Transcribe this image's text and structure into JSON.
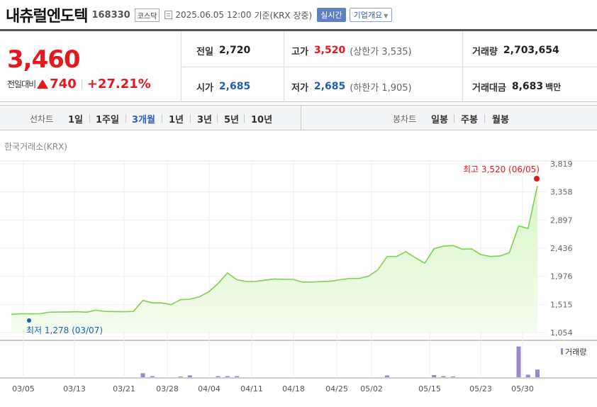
{
  "header": {
    "name": "내츄럴엔도텍",
    "code": "168330",
    "market": "코스닥",
    "datetime": "2025.06.05 12:00",
    "basis": "기준(KRX 장중)",
    "realtime_label": "실시간",
    "company_label": "기업개요"
  },
  "quote": {
    "price": "3,460",
    "change_label": "전일대비",
    "change_value": "740",
    "change_pct": "+27.21%",
    "prev_label": "전일",
    "prev_value": "2,720",
    "high_label": "고가",
    "high_value": "3,520",
    "upper_limit": "(상한가 3,535)",
    "volume_label": "거래량",
    "volume_value": "2,703,654",
    "open_label": "시가",
    "open_value": "2,685",
    "low_label": "저가",
    "low_value": "2,685",
    "lower_limit": "(하한가 1,905)",
    "amount_label": "거래대금",
    "amount_value": "8,683",
    "amount_unit": "백만"
  },
  "periods": {
    "line_label": "선차트",
    "line_items": [
      "1일",
      "1주일",
      "3개월",
      "1년",
      "3년",
      "5년",
      "10년"
    ],
    "active": "3개월",
    "candle_label": "봉차트",
    "candle_items": [
      "일봉",
      "주봉",
      "월봉"
    ]
  },
  "chart": {
    "exchange": "한국거래소(KRX)",
    "high_annotation": "최고 3,520 (06/05)",
    "low_annotation": "최저 1,278 (03/07)",
    "volume_legend": "거래량",
    "line_color": "#7cd34d",
    "fill_color": "#d9f5c7",
    "high_color": "#e5171f",
    "low_color": "#1d5ebd",
    "volume_color": "#9b87c9"
  },
  "chart_data": {
    "type": "area",
    "y_ticks": [
      "3,819",
      "3,358",
      "2,897",
      "2,436",
      "1,976",
      "1,515",
      "1,054"
    ],
    "ylim": [
      1054,
      3819
    ],
    "x_ticks": [
      "03/05",
      "03/13",
      "03/21",
      "03/28",
      "04/04",
      "04/11",
      "04/18",
      "04/25",
      "05/02",
      "05/15",
      "05/23",
      "05/30"
    ],
    "price_series": [
      1352,
      1362,
      1360,
      1362,
      1388,
      1390,
      1392,
      1395,
      1388,
      1420,
      1400,
      1398,
      1395,
      1400,
      1580,
      1540,
      1540,
      1510,
      1592,
      1600,
      1640,
      1720,
      1858,
      2030,
      1920,
      1890,
      1892,
      1912,
      1932,
      1925,
      1925,
      1880,
      1882,
      1888,
      1895,
      1920,
      1940,
      1940,
      1975,
      2080,
      2300,
      2300,
      2380,
      2280,
      2190,
      2430,
      2470,
      2480,
      2420,
      2425,
      2330,
      2300,
      2310,
      2360,
      2800,
      2760,
      3460
    ],
    "volume_series": [
      0,
      0,
      0,
      0,
      0,
      0,
      0,
      0,
      0,
      0,
      0,
      0,
      0,
      0,
      0.11,
      0.03,
      0,
      0,
      0.02,
      0.05,
      0,
      0,
      0.03,
      0.03,
      0.03,
      0,
      0,
      0,
      0,
      0,
      0,
      0,
      0,
      0,
      0,
      0,
      0,
      0,
      0,
      0,
      0.05,
      0,
      0,
      0,
      0,
      0.06,
      0.03,
      0.02,
      0,
      0,
      0,
      0,
      0,
      0,
      0.85,
      0.07,
      0.21
    ]
  }
}
